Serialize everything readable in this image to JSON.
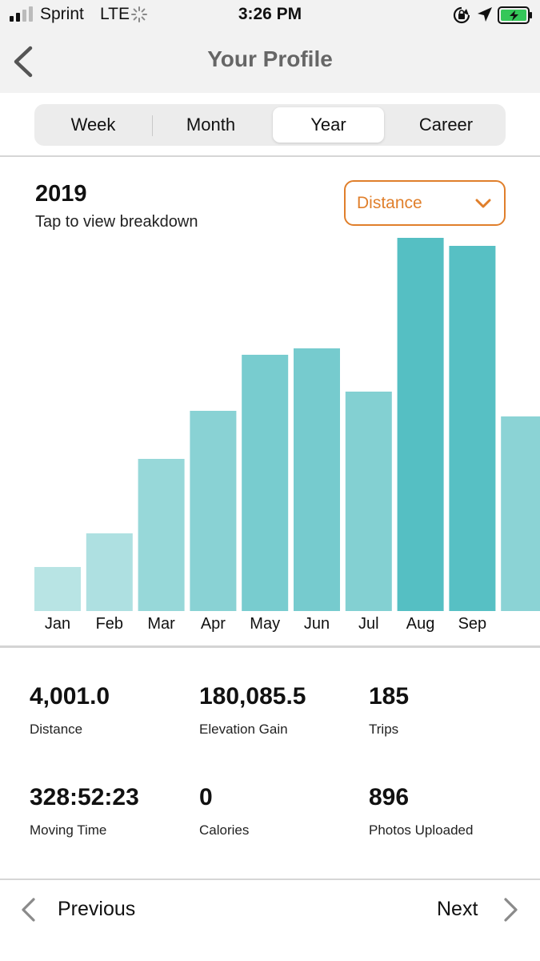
{
  "status_bar": {
    "carrier": "Sprint",
    "network": "LTE",
    "time": "3:26 PM",
    "battery_color": "#34c759"
  },
  "nav": {
    "title": "Your Profile"
  },
  "tabs": [
    "Week",
    "Month",
    "Year",
    "Career"
  ],
  "active_tab": "Year",
  "chart_header": {
    "year": "2019",
    "subtitle": "Tap to view breakdown",
    "metric_selected": "Distance"
  },
  "colors": {
    "accent_orange": "#e07f2b",
    "bar_light": "#b8e4e4",
    "bar_dark": "#55bfc3"
  },
  "chart_data": {
    "type": "bar",
    "categories": [
      "Jan",
      "Feb",
      "Mar",
      "Apr",
      "May",
      "Jun",
      "Jul",
      "Aug",
      "Sep"
    ],
    "values": [
      55,
      97,
      190,
      250,
      320,
      328,
      274,
      466,
      456
    ],
    "partial_next_value": 243,
    "ylim": [
      0,
      466
    ],
    "title": "",
    "xlabel": "",
    "ylabel": ""
  },
  "stats": [
    {
      "value": "4,001.0",
      "label": "Distance"
    },
    {
      "value": "180,085.5",
      "label": "Elevation Gain"
    },
    {
      "value": "185",
      "label": "Trips"
    },
    {
      "value": "328:52:23",
      "label": "Moving Time"
    },
    {
      "value": "0",
      "label": "Calories"
    },
    {
      "value": "896",
      "label": "Photos Uploaded"
    }
  ],
  "footer": {
    "previous_label": "Previous",
    "next_label": "Next"
  }
}
